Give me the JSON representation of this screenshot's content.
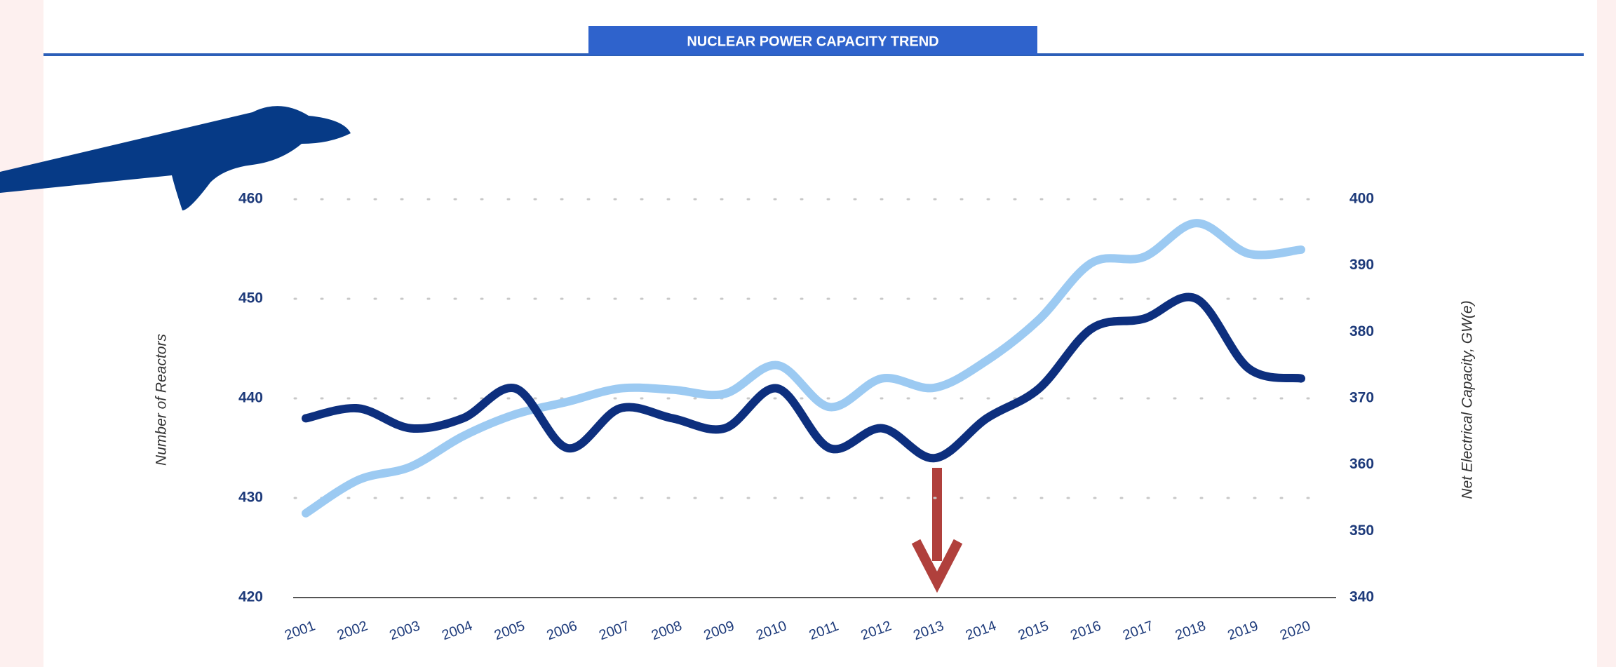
{
  "chart_data": {
    "type": "line",
    "title": "NUCLEAR POWER CAPACITY TREND",
    "y_label": "Number of Reactors",
    "y2_label": "Net Electrical Capacity, GW(e)",
    "categories": [
      "2001",
      "2002",
      "2003",
      "2004",
      "2005",
      "2006",
      "2007",
      "2008",
      "2009",
      "2010",
      "2011",
      "2012",
      "2013",
      "2014",
      "2015",
      "2016",
      "2017",
      "2018",
      "2019",
      "2020"
    ],
    "series": [
      {
        "color": "#0d2f7e",
        "values": [
          438,
          439,
          437,
          438,
          441,
          435,
          439,
          438,
          437,
          441,
          435,
          437,
          434,
          438,
          441,
          447,
          448,
          450,
          443,
          442
        ]
      },
      {
        "color": "#9ccaf2",
        "axis": "y2",
        "values": [
          352.7,
          357.7,
          359.7,
          364.3,
          367.6,
          369.5,
          371.5,
          371.3,
          370.7,
          375,
          368.7,
          373,
          371.6,
          375.7,
          381.9,
          390.4,
          391.3,
          396.4,
          391.8,
          392.4
        ]
      }
    ],
    "ylim": [
      420,
      460
    ],
    "yticks": [
      420,
      430,
      440,
      450,
      460
    ],
    "y2lim": [
      340,
      400
    ],
    "y2ticks": [
      340,
      350,
      360,
      370,
      380,
      390,
      400
    ],
    "grid": true
  }
}
